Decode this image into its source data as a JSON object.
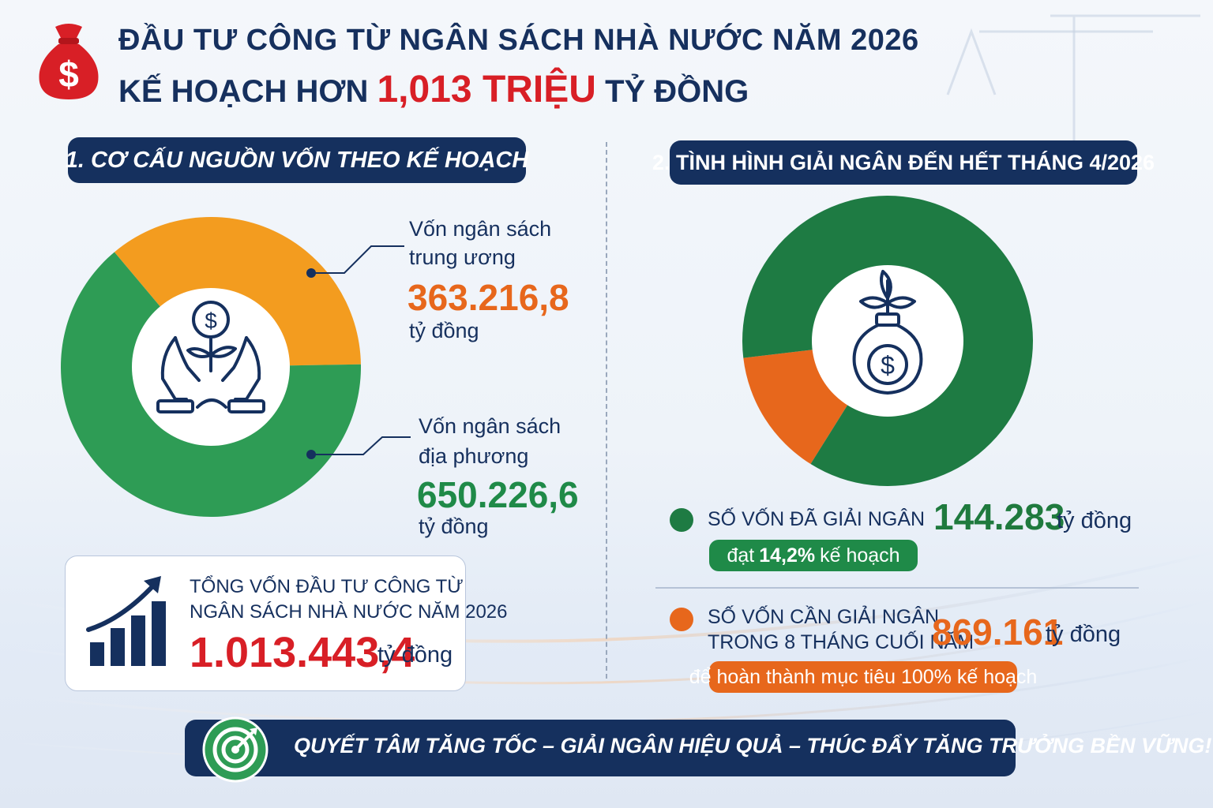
{
  "header": {
    "title_line1": "ĐẦU TƯ CÔNG TỪ NGÂN SÁCH NHÀ NƯỚC NĂM 2026",
    "title_line2_prefix": "KẾ HOẠCH HƠN",
    "title_line2_highlight": "1,013 TRIỆU",
    "title_line2_suffix": "TỶ ĐỒNG"
  },
  "section1": {
    "title": "1. CƠ CẤU NGUỒN VỐN THEO KẾ HOẠCH",
    "central": {
      "label_line1": "Vốn ngân sách",
      "label_line2": "trung ương",
      "value": "363.216,8",
      "unit": "tỷ đồng"
    },
    "local": {
      "label_line1": "Vốn ngân sách",
      "label_line2": "địa phương",
      "value": "650.226,6",
      "unit": "tỷ đồng"
    },
    "total": {
      "label_line1": "TỔNG VỐN ĐẦU TƯ CÔNG TỪ",
      "label_line2": "NGÂN SÁCH NHÀ NƯỚC NĂM 2026",
      "value": "1.013.443,4",
      "unit": "tỷ đồng"
    }
  },
  "section2": {
    "title": "2. TÌNH HÌNH GIẢI NGÂN ĐẾN HẾT THÁNG 4/2026",
    "disbursed": {
      "label": "SỐ VỐN ĐÃ GIẢI NGÂN",
      "value": "144.283",
      "unit": "tỷ đồng",
      "badge_prefix": "đạt",
      "badge_percent": "14,2%",
      "badge_suffix": "kế hoạch"
    },
    "remaining": {
      "label_line1": "SỐ VỐN CẦN GIẢI NGÂN",
      "label_line2": "TRONG 8 THÁNG CUỐI NĂM",
      "value": "869.161",
      "unit": "tỷ đồng",
      "badge": "để hoàn thành mục tiêu 100% kế hoạch"
    }
  },
  "footer": {
    "slogan": "QUYẾT TÂM TĂNG TỐC – GIẢI NGÂN HIỆU QUẢ – THÚC ĐẨY TĂNG TRƯỞNG BỀN VỮNG!"
  },
  "colors": {
    "navy": "#15305e",
    "orange": "#f39c1f",
    "green": "#2e9c55",
    "dark_green": "#1e7b43",
    "accent_orange": "#e7671c",
    "red": "#d81f26"
  },
  "chart_data": [
    {
      "type": "pie",
      "categories": [
        "Vốn ngân sách trung ương",
        "Vốn ngân sách địa phương"
      ],
      "values": [
        363216.8,
        650226.6
      ],
      "colors": [
        "#f39c1f",
        "#2e9c55"
      ],
      "donut": true
    },
    {
      "type": "pie",
      "categories": [
        "SỐ VỐN ĐÃ GIẢI NGÂN",
        "SỐ VỐN CẦN GIẢI NGÂN"
      ],
      "values": [
        144283,
        869161
      ],
      "colors": [
        "#e7671c",
        "#1e7b43"
      ],
      "donut": true
    }
  ]
}
